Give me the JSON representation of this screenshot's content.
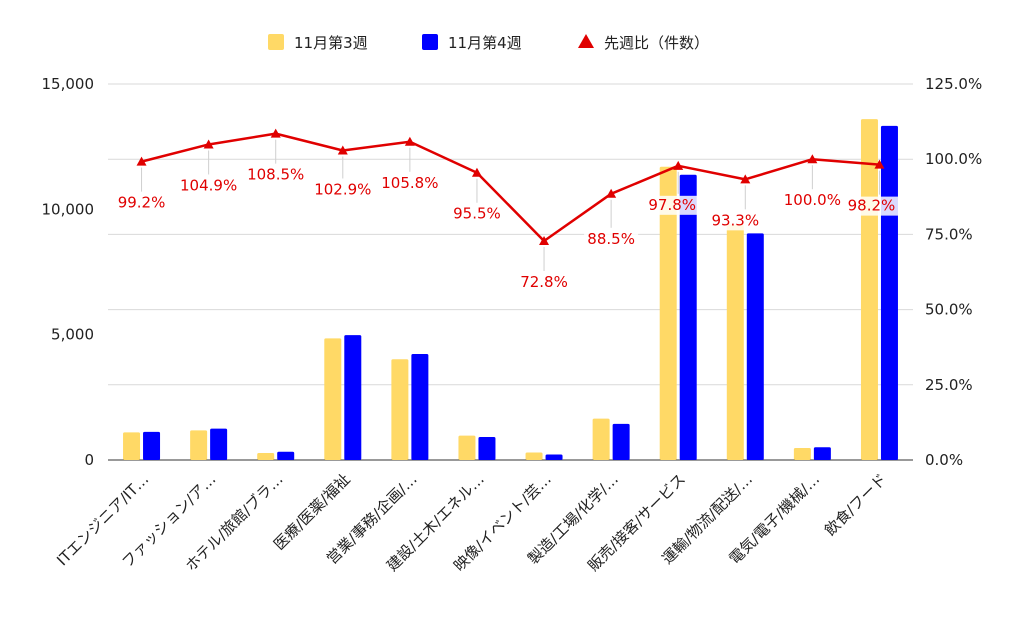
{
  "chart_data": {
    "type": "bar",
    "categories": [
      "ITエンジニア/IT…",
      "ファッション/ア…",
      "ホテル/旅館/ブラ…",
      "医療/医薬/福祉",
      "営業/事務/企画/…",
      "建設/土木/エネル…",
      "映像/イベント/芸…",
      "製造/工場/化学/…",
      "販売/接客/サービス",
      "運輸/物流/配送/…",
      "電気/電子/機械/…",
      "飲食/フード"
    ],
    "series": [
      {
        "name": "11月第3週",
        "type": "bar",
        "axis": "left",
        "color": "#ffd966",
        "values": [
          1100,
          1180,
          280,
          4850,
          4020,
          970,
          300,
          1650,
          11700,
          9400,
          480,
          13600
        ]
      },
      {
        "name": "11月第4週",
        "type": "bar",
        "axis": "left",
        "color": "#0000ff",
        "values": [
          1120,
          1250,
          330,
          4980,
          4230,
          920,
          220,
          1440,
          11380,
          9040,
          510,
          13330
        ]
      },
      {
        "name": "先週比（件数）",
        "type": "line",
        "axis": "right",
        "color": "#e00000",
        "marker": "triangle",
        "values": [
          99.2,
          104.9,
          108.5,
          102.9,
          105.8,
          95.5,
          72.8,
          88.5,
          97.8,
          93.3,
          100.0,
          98.2
        ],
        "labels": [
          "99.2%",
          "104.9%",
          "108.5%",
          "102.9%",
          "105.8%",
          "95.5%",
          "72.8%",
          "88.5%",
          "97.8%",
          "93.3%",
          "100.0%",
          "98.2%"
        ]
      }
    ],
    "y_left": {
      "min": 0,
      "max": 15000,
      "ticks": [
        0,
        5000,
        10000,
        15000
      ],
      "tick_labels": [
        "0",
        "5,000",
        "10,000",
        "15,000"
      ]
    },
    "y_right": {
      "min": 0,
      "max": 125,
      "ticks": [
        0,
        25,
        50,
        75,
        100,
        125
      ],
      "tick_labels": [
        "0.0%",
        "25.0%",
        "50.0%",
        "75.0%",
        "100.0%",
        "125.0%"
      ]
    },
    "grid": true,
    "legend_position": "top-center"
  }
}
